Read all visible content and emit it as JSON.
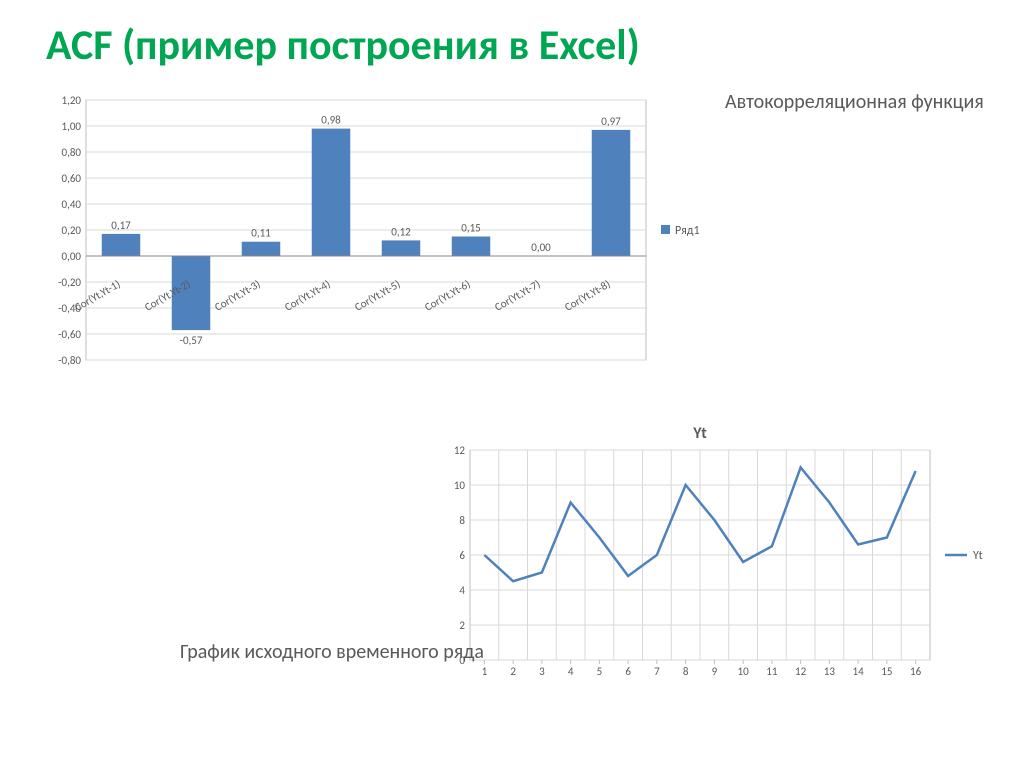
{
  "slide": {
    "title": "ACF (пример построения в Excel)",
    "title_color": "#00a651",
    "title_fontsize": 42
  },
  "acf": {
    "type": "bar",
    "side_label": "Автокорреляционная функция",
    "legend": "Ряд1",
    "bar_color": "#4f81bd",
    "background_color": "#ffffff",
    "grid_color": "#d9d9d9",
    "border_color": "#bfbfbf",
    "tick_fontsize": 11,
    "datalabel_fontsize": 11,
    "text_color": "#595959",
    "ylim": [
      -0.8,
      1.2
    ],
    "ytick_step": 0.2,
    "yticks_labels": [
      "-0,80",
      "-0,60",
      "-0,40",
      "-0,20",
      "0,00",
      "0,20",
      "0,40",
      "0,60",
      "0,80",
      "1,00",
      "1,20"
    ],
    "categories": [
      "Cor(Yt,Yt-1)",
      "Cor(Yt,Yt-2)",
      "Cor(Yt,Yt-3)",
      "Cor(Yt,Yt-4)",
      "Cor(Yt,Yt-5)",
      "Cor(Yt,Yt-6)",
      "Cor(Yt,Yt-7)",
      "Cor(Yt,Yt-8)"
    ],
    "values": [
      0.17,
      -0.57,
      0.11,
      0.98,
      0.12,
      0.15,
      0.0,
      0.97
    ],
    "value_labels": [
      "0,17",
      "-0,57",
      "0,11",
      "0,98",
      "0,12",
      "0,15",
      "0,00",
      "0,97"
    ],
    "bar_width": 0.55
  },
  "ts": {
    "type": "line",
    "title": "Yt",
    "caption": "График исходного временного ряда",
    "legend": "Yt",
    "line_color": "#4f81bd",
    "background_color": "#ffffff",
    "grid_color": "#d9d9d9",
    "border_color": "#bfbfbf",
    "title_fontsize": 16,
    "title_weight": "bold",
    "tick_fontsize": 11,
    "text_color": "#595959",
    "line_width": 2.5,
    "ylim": [
      0,
      12
    ],
    "ytick_step": 2,
    "xlim": [
      1,
      16
    ],
    "x": [
      1,
      2,
      3,
      4,
      5,
      6,
      7,
      8,
      9,
      10,
      11,
      12,
      13,
      14,
      15,
      16
    ],
    "y": [
      6.0,
      4.5,
      5.0,
      9.0,
      7.0,
      4.8,
      6.0,
      10.0,
      8.0,
      5.6,
      6.5,
      11.0,
      9.0,
      6.6,
      7.0,
      10.8
    ]
  }
}
